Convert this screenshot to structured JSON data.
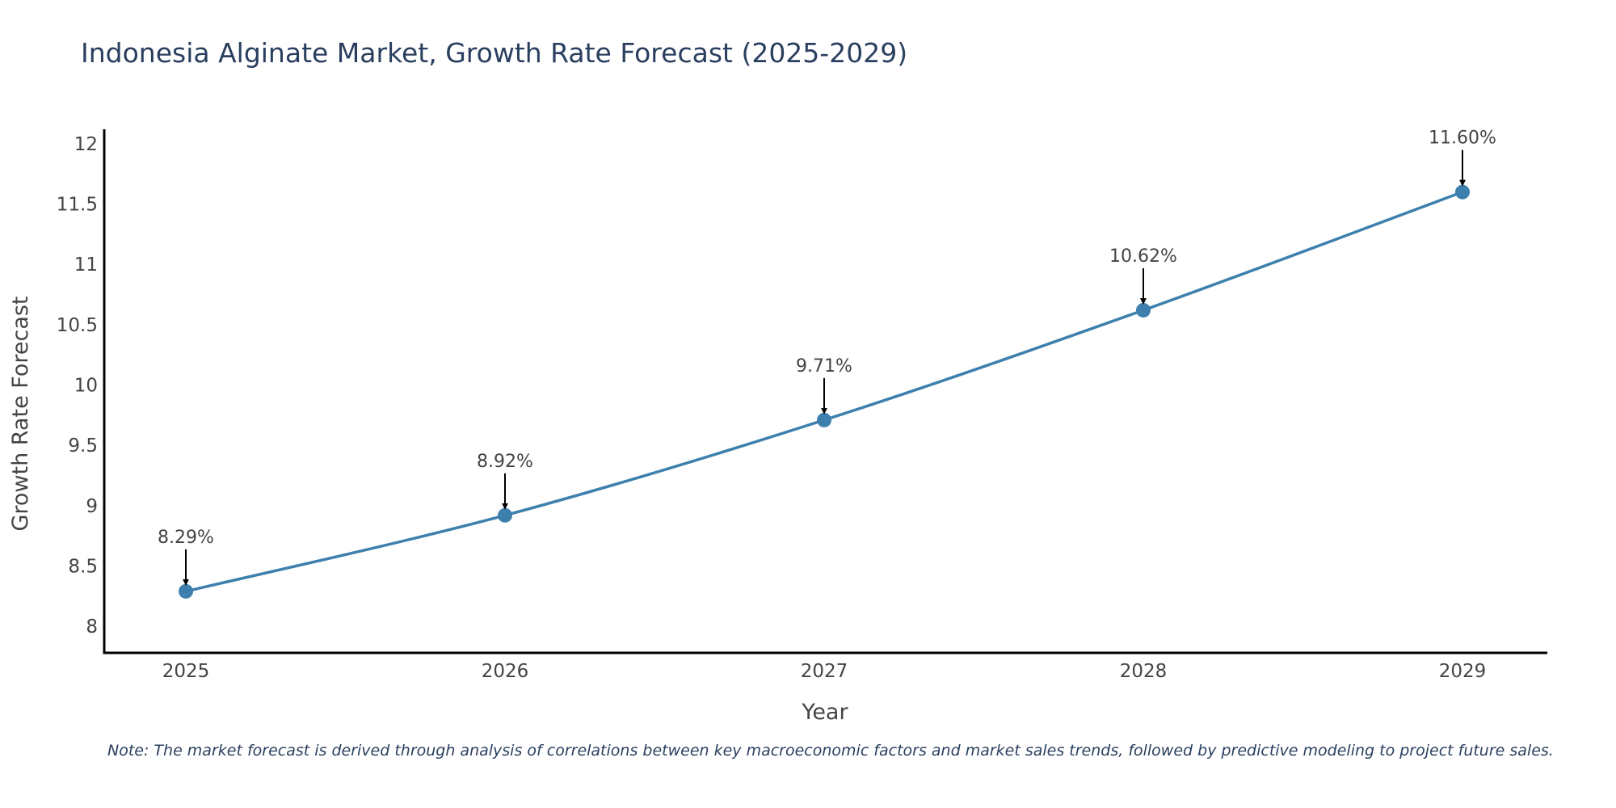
{
  "chart_data": {
    "type": "line",
    "title": "Indonesia Alginate Market, Growth Rate Forecast (2025-2029)",
    "xlabel": "Year",
    "ylabel": "Growth Rate Forecast",
    "categories": [
      "2025",
      "2026",
      "2027",
      "2028",
      "2029"
    ],
    "series": [
      {
        "name": "Growth Rate Forecast",
        "values": [
          8.29,
          8.92,
          9.71,
          10.62,
          11.6
        ],
        "labels": [
          "8.29%",
          "8.92%",
          "9.71%",
          "10.62%",
          "11.60%"
        ]
      }
    ],
    "ylim": [
      7.78,
      12.12
    ],
    "yticks": [
      8,
      8.5,
      9,
      9.5,
      10,
      10.5,
      11,
      11.5,
      12
    ],
    "ytick_labels": [
      "8",
      "8.5",
      "9",
      "9.5",
      "10",
      "10.5",
      "11",
      "11.5",
      "12"
    ],
    "grid": false,
    "line_color": "#3d7fad",
    "note": "Note: The market forecast is derived through analysis of correlations between key macroeconomic factors and market sales trends, followed by predictive modeling to project future sales."
  }
}
